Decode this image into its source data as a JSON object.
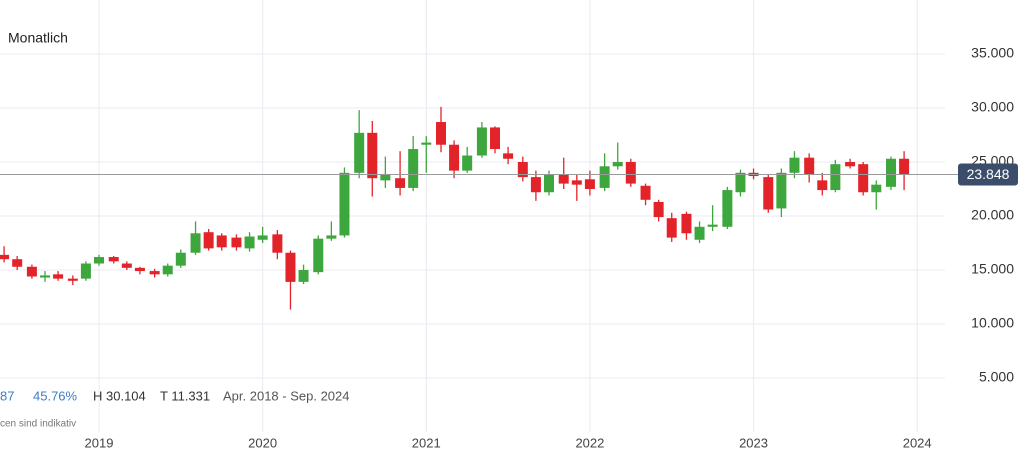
{
  "chart_data": {
    "type": "candlestick",
    "title": "Monatlich",
    "x": [
      2018.42,
      2018.5,
      2018.59,
      2018.67,
      2018.75,
      2018.84,
      2018.92,
      2019.0,
      2019.09,
      2019.17,
      2019.25,
      2019.34,
      2019.42,
      2019.5,
      2019.59,
      2019.67,
      2019.75,
      2019.84,
      2019.92,
      2020.0,
      2020.09,
      2020.17,
      2020.25,
      2020.34,
      2020.42,
      2020.5,
      2020.59,
      2020.67,
      2020.75,
      2020.84,
      2020.92,
      2021.0,
      2021.09,
      2021.17,
      2021.25,
      2021.34,
      2021.42,
      2021.5,
      2021.59,
      2021.67,
      2021.75,
      2021.84,
      2021.92,
      2022.0,
      2022.09,
      2022.17,
      2022.25,
      2022.34,
      2022.42,
      2022.5,
      2022.59,
      2022.67,
      2022.75,
      2022.84,
      2022.92,
      2023.0,
      2023.09,
      2023.17,
      2023.25,
      2023.34,
      2023.42,
      2023.5,
      2023.59,
      2023.67,
      2023.75,
      2023.84,
      2023.92
    ],
    "open": [
      16400,
      16000,
      15300,
      14300,
      14600,
      14200,
      14200,
      15600,
      16200,
      15600,
      15200,
      14900,
      14600,
      15400,
      16600,
      18500,
      18200,
      18000,
      17000,
      17800,
      18300,
      16600,
      13900,
      14800,
      17900,
      18200,
      24000,
      27700,
      23300,
      23500,
      22600,
      26600,
      28700,
      26600,
      24200,
      25600,
      28200,
      25800,
      25000,
      23600,
      22200,
      23800,
      23300,
      23400,
      22600,
      24600,
      25000,
      22800,
      21300,
      19800,
      20200,
      17800,
      19000,
      19000,
      22200,
      24000,
      23600,
      20700,
      24000,
      25400,
      23300,
      22400,
      25000,
      24800,
      22200,
      22700,
      25300
    ],
    "high": [
      17200,
      16300,
      15500,
      14900,
      14900,
      14500,
      15800,
      16400,
      16300,
      15800,
      15300,
      15100,
      15600,
      16900,
      19500,
      18800,
      18400,
      18300,
      18500,
      19000,
      18700,
      16800,
      15500,
      18200,
      19500,
      24500,
      29800,
      28800,
      25500,
      26000,
      27400,
      27400,
      30104,
      27000,
      26400,
      28700,
      28300,
      26400,
      25500,
      24200,
      24200,
      25400,
      23800,
      24200,
      25800,
      26800,
      25300,
      23000,
      21500,
      20300,
      20400,
      19500,
      21000,
      22700,
      24300,
      24400,
      23900,
      24400,
      26000,
      25800,
      24000,
      25200,
      25300,
      25000,
      23300,
      25500,
      26000
    ],
    "low": [
      15700,
      15000,
      14200,
      13900,
      14000,
      13600,
      14000,
      15400,
      15600,
      15000,
      14600,
      14300,
      14400,
      15200,
      16400,
      16800,
      16800,
      16800,
      16700,
      17500,
      16000,
      11331,
      13700,
      14600,
      17700,
      18000,
      23500,
      21800,
      22600,
      21900,
      22300,
      24000,
      25900,
      23500,
      24000,
      25400,
      25800,
      24800,
      23200,
      21400,
      21900,
      22500,
      21400,
      21900,
      22300,
      24300,
      22700,
      21000,
      19500,
      17600,
      17800,
      17500,
      18600,
      18800,
      21800,
      23400,
      20300,
      19900,
      23500,
      23100,
      21900,
      22200,
      24400,
      21900,
      20600,
      22400,
      22400
    ],
    "close": [
      16000,
      15300,
      14400,
      14500,
      14200,
      14000,
      15600,
      16200,
      15800,
      15200,
      14900,
      14600,
      15400,
      16600,
      18400,
      17000,
      17100,
      17100,
      18100,
      18200,
      16600,
      13900,
      15000,
      17900,
      18200,
      24000,
      27700,
      23500,
      23800,
      22600,
      26200,
      26800,
      26600,
      24200,
      25600,
      28200,
      26200,
      25300,
      23600,
      22200,
      23800,
      23000,
      22900,
      22500,
      24600,
      25000,
      23000,
      21500,
      19900,
      18000,
      18400,
      19000,
      19200,
      22400,
      24000,
      23700,
      20600,
      24000,
      25400,
      23800,
      22400,
      24800,
      24600,
      22200,
      22900,
      25300,
      23800
    ],
    "up_color": "#3da73d",
    "down_color": "#e2232a",
    "xlim": [
      2018.395,
      2024.17
    ],
    "xticks": [
      2019,
      2020,
      2021,
      2022,
      2023,
      2024
    ],
    "ylim": [
      0,
      40000
    ],
    "yticks": [
      {
        "value": 5000,
        "label": "5.000"
      },
      {
        "value": 10000,
        "label": "10.000"
      },
      {
        "value": 15000,
        "label": "15.000"
      },
      {
        "value": 20000,
        "label": "20.000"
      },
      {
        "value": 25000,
        "label": "25.000"
      },
      {
        "value": 30000,
        "label": "30.000"
      },
      {
        "value": 35000,
        "label": "35.000"
      }
    ],
    "grid": true,
    "last_price": {
      "value": 23848,
      "label": "23.848"
    },
    "annotations": [
      "87",
      "45.76%",
      "H 30.104",
      "T 11.331",
      "Apr. 2018 - Sep. 2024",
      "cen sind indikativ"
    ]
  }
}
